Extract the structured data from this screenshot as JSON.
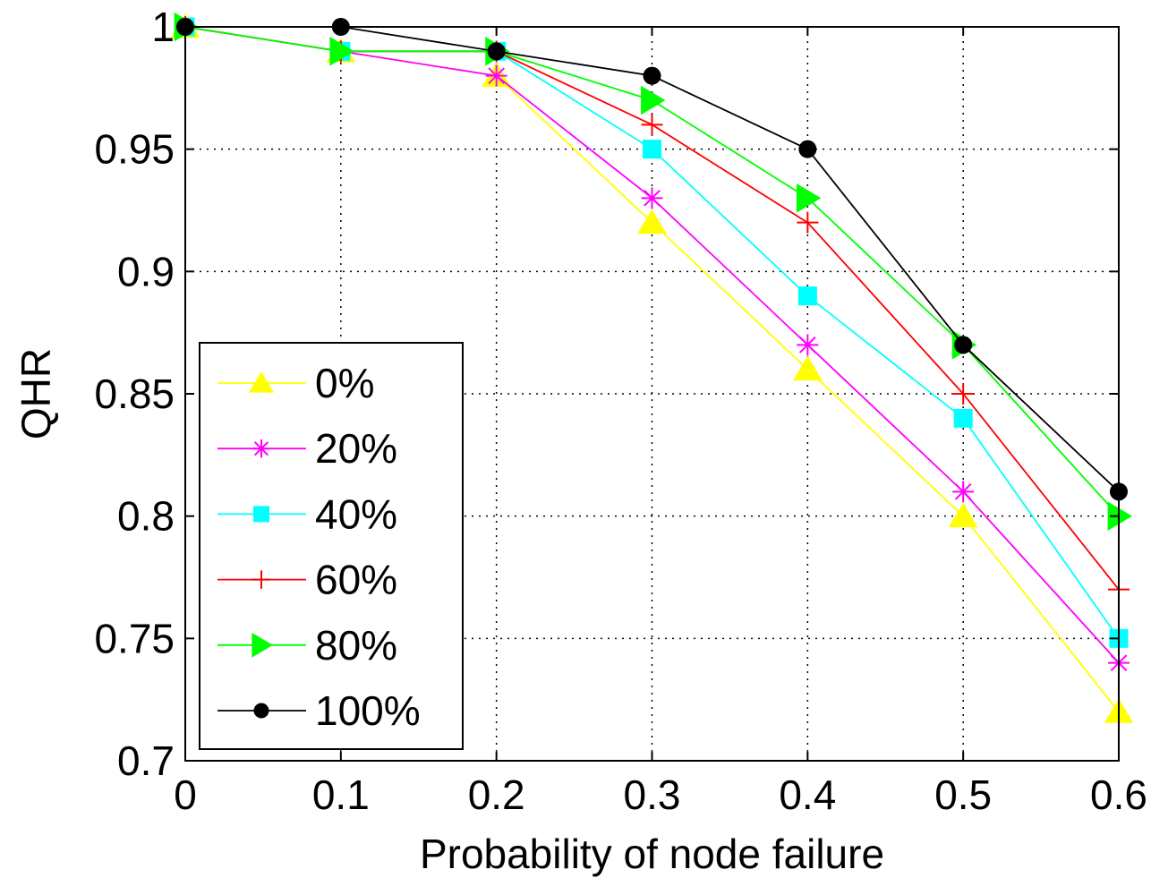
{
  "chart_data": {
    "type": "line",
    "title": "",
    "xlabel": "Probability of node failure",
    "ylabel": "QHR",
    "x": [
      0,
      0.1,
      0.2,
      0.3,
      0.4,
      0.5,
      0.6
    ],
    "xlim": [
      0,
      0.6
    ],
    "ylim": [
      0.7,
      1.0
    ],
    "xticks": [
      "0",
      "0.1",
      "0.2",
      "0.3",
      "0.4",
      "0.5",
      "0.6"
    ],
    "yticks": [
      "0.7",
      "0.75",
      "0.8",
      "0.85",
      "0.9",
      "0.95",
      "1"
    ],
    "grid": true,
    "legend_position": "bottom-left",
    "series": [
      {
        "name": "0%",
        "color": "#ffff00",
        "marker": "triangle-up",
        "values": [
          1.0,
          0.99,
          0.98,
          0.92,
          0.86,
          0.8,
          0.72
        ]
      },
      {
        "name": "20%",
        "color": "#ff00ff",
        "marker": "star",
        "values": [
          1.0,
          0.99,
          0.98,
          0.93,
          0.87,
          0.81,
          0.74
        ]
      },
      {
        "name": "40%",
        "color": "#00ffff",
        "marker": "square",
        "values": [
          1.0,
          0.99,
          0.99,
          0.95,
          0.89,
          0.84,
          0.75
        ]
      },
      {
        "name": "60%",
        "color": "#ff0000",
        "marker": "plus",
        "values": [
          1.0,
          0.99,
          0.99,
          0.96,
          0.92,
          0.85,
          0.77
        ]
      },
      {
        "name": "80%",
        "color": "#00ff00",
        "marker": "triangle-right",
        "values": [
          1.0,
          0.99,
          0.99,
          0.97,
          0.93,
          0.87,
          0.8
        ]
      },
      {
        "name": "100%",
        "color": "#000000",
        "marker": "circle",
        "values": [
          1.0,
          1.0,
          0.99,
          0.98,
          0.95,
          0.87,
          0.81
        ]
      }
    ]
  }
}
